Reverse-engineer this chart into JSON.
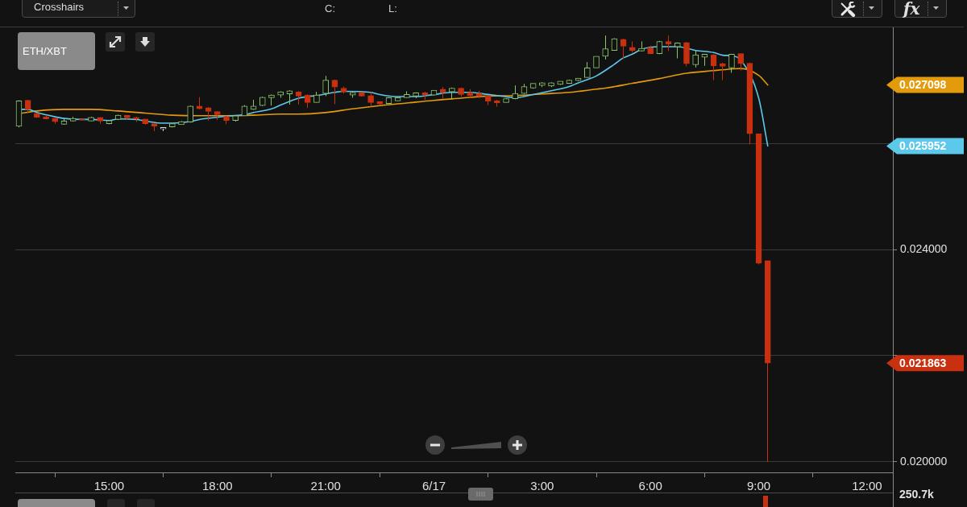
{
  "chart_data": {
    "type": "candlestick",
    "title": "ETH/XBT",
    "annotations": [
      "Crosshairs",
      "C:",
      "L:",
      "fx",
      "250.7k",
      "0.027098",
      "0.025952",
      "0.021863"
    ],
    "x": [
      "--06-16T12:30",
      "--06-16T12:45",
      "--06-16T13:00",
      "--06-16T13:15",
      "--06-16T13:30",
      "--06-16T13:45",
      "--06-16T14:00",
      "--06-16T14:15",
      "--06-16T14:30",
      "--06-16T14:45",
      "--06-16T15:00",
      "--06-16T15:15",
      "--06-16T15:30",
      "--06-16T15:45",
      "--06-16T16:00",
      "--06-16T16:15",
      "--06-16T16:30",
      "--06-16T16:45",
      "--06-16T17:00",
      "--06-16T17:15",
      "--06-16T17:30",
      "--06-16T17:45",
      "--06-16T18:00",
      "--06-16T18:15",
      "--06-16T18:30",
      "--06-16T18:45",
      "--06-16T19:00",
      "--06-16T19:15",
      "--06-16T19:30",
      "--06-16T19:45",
      "--06-16T20:00",
      "--06-16T20:15",
      "--06-16T20:30",
      "--06-16T20:45",
      "--06-16T21:00",
      "--06-16T21:15",
      "--06-16T21:30",
      "--06-16T21:45",
      "--06-16T22:00",
      "--06-16T22:15",
      "--06-16T22:30",
      "--06-16T22:45",
      "--06-16T23:00",
      "--06-16T23:15",
      "--06-16T23:30",
      "--06-16T23:45",
      "--06-17T00:00",
      "--06-17T00:15",
      "--06-17T00:30",
      "--06-17T00:45",
      "--06-17T01:00",
      "--06-17T01:15",
      "--06-17T01:30",
      "--06-17T01:45",
      "--06-17T02:00",
      "--06-17T02:15",
      "--06-17T02:30",
      "--06-17T02:45",
      "--06-17T03:00",
      "--06-17T03:15",
      "--06-17T03:30",
      "--06-17T03:45",
      "--06-17T04:00",
      "--06-17T04:15",
      "--06-17T04:30",
      "--06-17T04:45",
      "--06-17T05:00",
      "--06-17T05:15",
      "--06-17T05:30",
      "--06-17T05:45",
      "--06-17T06:00",
      "--06-17T06:15",
      "--06-17T06:30",
      "--06-17T06:45",
      "--06-17T07:00",
      "--06-17T07:15",
      "--06-17T07:30",
      "--06-17T07:45",
      "--06-17T08:00",
      "--06-17T08:15",
      "--06-17T08:30",
      "--06-17T08:45",
      "--06-17T09:00",
      "--06-17T09:15"
    ],
    "ohlc": [
      [
        0.02632,
        0.02681,
        0.0263,
        0.0268
      ],
      [
        0.02681,
        0.02682,
        0.02658,
        0.02664
      ],
      [
        0.02656,
        0.02657,
        0.02648,
        0.02649
      ],
      [
        0.0265,
        0.02653,
        0.02645,
        0.02646
      ],
      [
        0.02647,
        0.02648,
        0.02637,
        0.02641
      ],
      [
        0.02636,
        0.02646,
        0.02635,
        0.02642
      ],
      [
        0.02642,
        0.0265,
        0.02641,
        0.02647
      ],
      [
        0.02646,
        0.02647,
        0.02643,
        0.02644
      ],
      [
        0.02642,
        0.0265,
        0.02642,
        0.02649
      ],
      [
        0.02649,
        0.02649,
        0.02637,
        0.02642
      ],
      [
        0.02637,
        0.02643,
        0.02636,
        0.02643
      ],
      [
        0.02645,
        0.02654,
        0.02644,
        0.02653
      ],
      [
        0.02653,
        0.02653,
        0.02644,
        0.02648
      ],
      [
        0.02649,
        0.0265,
        0.0264,
        0.02646
      ],
      [
        0.02646,
        0.02646,
        0.02635,
        0.02637
      ],
      [
        0.02637,
        0.02637,
        0.02623,
        0.02632
      ],
      [
        0.02627,
        0.0263,
        0.02623,
        0.0263
      ],
      [
        0.02631,
        0.02637,
        0.0263,
        0.02637
      ],
      [
        0.02635,
        0.02642,
        0.02635,
        0.02641
      ],
      [
        0.0264,
        0.02671,
        0.02639,
        0.0267
      ],
      [
        0.0267,
        0.02687,
        0.02664,
        0.02665
      ],
      [
        0.02667,
        0.02668,
        0.02643,
        0.0266
      ],
      [
        0.0266,
        0.0266,
        0.02644,
        0.02654
      ],
      [
        0.02651,
        0.02652,
        0.02636,
        0.02643
      ],
      [
        0.02643,
        0.02652,
        0.02641,
        0.02652
      ],
      [
        0.02652,
        0.02672,
        0.02652,
        0.0267
      ],
      [
        0.02664,
        0.02682,
        0.02663,
        0.0267
      ],
      [
        0.02671,
        0.02688,
        0.0267,
        0.02687
      ],
      [
        0.02686,
        0.02692,
        0.02671,
        0.02691
      ],
      [
        0.02691,
        0.02698,
        0.02686,
        0.02697
      ],
      [
        0.02693,
        0.027,
        0.02673,
        0.02699
      ],
      [
        0.02697,
        0.02698,
        0.02673,
        0.02689
      ],
      [
        0.02691,
        0.02692,
        0.02667,
        0.02677
      ],
      [
        0.02677,
        0.02697,
        0.02677,
        0.02691
      ],
      [
        0.02694,
        0.02727,
        0.02689,
        0.02719
      ],
      [
        0.02719,
        0.0272,
        0.02674,
        0.02706
      ],
      [
        0.02704,
        0.02707,
        0.02694,
        0.02697
      ],
      [
        0.02691,
        0.02697,
        0.02686,
        0.02696
      ],
      [
        0.02696,
        0.02696,
        0.02688,
        0.02689
      ],
      [
        0.0269,
        0.02696,
        0.02669,
        0.02677
      ],
      [
        0.02679,
        0.02679,
        0.02672,
        0.02674
      ],
      [
        0.02675,
        0.02687,
        0.02675,
        0.02686
      ],
      [
        0.0268,
        0.02687,
        0.0268,
        0.02686
      ],
      [
        0.02686,
        0.02698,
        0.02686,
        0.02692
      ],
      [
        0.02689,
        0.02696,
        0.02685,
        0.02695
      ],
      [
        0.02695,
        0.02697,
        0.02682,
        0.02691
      ],
      [
        0.02691,
        0.027,
        0.0269,
        0.027
      ],
      [
        0.02702,
        0.02706,
        0.02684,
        0.02696
      ],
      [
        0.02697,
        0.02705,
        0.02683,
        0.02704
      ],
      [
        0.02704,
        0.02705,
        0.02688,
        0.02692
      ],
      [
        0.02696,
        0.02702,
        0.02686,
        0.0269
      ],
      [
        0.02694,
        0.02699,
        0.02685,
        0.02689
      ],
      [
        0.02689,
        0.0269,
        0.02672,
        0.02679
      ],
      [
        0.0268,
        0.02682,
        0.02669,
        0.02676
      ],
      [
        0.02677,
        0.02685,
        0.02677,
        0.02684
      ],
      [
        0.02684,
        0.02709,
        0.02683,
        0.02694
      ],
      [
        0.02694,
        0.02712,
        0.02693,
        0.02707
      ],
      [
        0.02704,
        0.02713,
        0.02703,
        0.02713
      ],
      [
        0.02709,
        0.02715,
        0.02706,
        0.02714
      ],
      [
        0.02708,
        0.02715,
        0.02706,
        0.02714
      ],
      [
        0.02711,
        0.02717,
        0.0271,
        0.02717
      ],
      [
        0.02713,
        0.0272,
        0.02712,
        0.02719
      ],
      [
        0.02718,
        0.02723,
        0.02717,
        0.02723
      ],
      [
        0.02724,
        0.02753,
        0.02724,
        0.02742
      ],
      [
        0.02742,
        0.02764,
        0.02742,
        0.02764
      ],
      [
        0.02764,
        0.02803,
        0.02758,
        0.02778
      ],
      [
        0.02775,
        0.02798,
        0.02775,
        0.02797
      ],
      [
        0.02796,
        0.02797,
        0.02759,
        0.02783
      ],
      [
        0.02781,
        0.02792,
        0.02771,
        0.02775
      ],
      [
        0.02774,
        0.02792,
        0.02773,
        0.02779
      ],
      [
        0.0278,
        0.02784,
        0.02768,
        0.02769
      ],
      [
        0.02769,
        0.02793,
        0.02768,
        0.02792
      ],
      [
        0.02792,
        0.02803,
        0.02774,
        0.02787
      ],
      [
        0.02782,
        0.0279,
        0.0276,
        0.02789
      ],
      [
        0.0279,
        0.02791,
        0.02745,
        0.0275
      ],
      [
        0.02748,
        0.02775,
        0.02743,
        0.02767
      ],
      [
        0.02762,
        0.02768,
        0.02746,
        0.02768
      ],
      [
        0.02767,
        0.02768,
        0.02719,
        0.02746
      ],
      [
        0.0275,
        0.02752,
        0.02719,
        0.02745
      ],
      [
        0.02742,
        0.02768,
        0.02733,
        0.02768
      ],
      [
        0.02769,
        0.02769,
        0.02737,
        0.0275
      ],
      [
        0.02751,
        0.02752,
        0.02598,
        0.02618
      ],
      [
        0.02618,
        0.02618,
        0.02372,
        0.02374
      ],
      [
        0.02379,
        0.02379,
        0.02,
        0.02186
      ]
    ],
    "colors": [
      "#8bc66a",
      "#c8300f",
      "#c8300f",
      "#c8300f",
      "#c8300f",
      "#8bc66a",
      "#8bc66a",
      "#c8300f",
      "#8bc66a",
      "#c8300f",
      "#8bc66a",
      "#8bc66a",
      "#c8300f",
      "#c8300f",
      "#c8300f",
      "#c8300f",
      "#d9d9d9",
      "#8bc66a",
      "#8bc66a",
      "#8bc66a",
      "#c8300f",
      "#c8300f",
      "#c8300f",
      "#c8300f",
      "#8bc66a",
      "#8bc66a",
      "#8bc66a",
      "#8bc66a",
      "#8bc66a",
      "#8bc66a",
      "#8bc66a",
      "#c8300f",
      "#c8300f",
      "#8bc66a",
      "#8bc66a",
      "#c8300f",
      "#c8300f",
      "#8bc66a",
      "#c8300f",
      "#c8300f",
      "#c8300f",
      "#8bc66a",
      "#8bc66a",
      "#8bc66a",
      "#8bc66a",
      "#c8300f",
      "#8bc66a",
      "#c8300f",
      "#8bc66a",
      "#c8300f",
      "#c8300f",
      "#c8300f",
      "#c8300f",
      "#c8300f",
      "#8bc66a",
      "#8bc66a",
      "#8bc66a",
      "#8bc66a",
      "#8bc66a",
      "#8bc66a",
      "#8bc66a",
      "#8bc66a",
      "#8bc66a",
      "#8bc66a",
      "#8bc66a",
      "#8bc66a",
      "#8bc66a",
      "#c8300f",
      "#c8300f",
      "#8bc66a",
      "#c8300f",
      "#8bc66a",
      "#c8300f",
      "#8bc66a",
      "#c8300f",
      "#8bc66a",
      "#8bc66a",
      "#c8300f",
      "#c8300f",
      "#8bc66a",
      "#c8300f",
      "#c8300f",
      "#c8300f",
      "#c8300f"
    ],
    "series": [
      {
        "type": "line",
        "color": "#5cc8ea",
        "x": [
          "--06-16T12:30",
          "--06-16T12:45",
          "--06-16T13:00",
          "--06-16T13:30",
          "--06-16T13:45",
          "--06-16T14:15",
          "--06-16T14:30",
          "--06-16T15:00",
          "--06-16T15:15",
          "--06-16T15:45",
          "--06-16T16:00",
          "--06-16T16:30",
          "--06-16T16:45",
          "--06-16T17:15",
          "--06-16T17:30",
          "--06-16T18:00",
          "--06-16T18:15",
          "--06-16T18:45",
          "--06-16T19:00",
          "--06-16T19:30",
          "--06-16T19:45",
          "--06-16T20:15",
          "--06-16T20:30",
          "--06-16T20:45",
          "--06-16T21:15",
          "--06-16T21:30",
          "--06-16T22:15",
          "--06-16T22:30",
          "--06-16T23:00",
          "--06-16T23:30",
          "--06-17T00:00",
          "--06-17T00:30",
          "--06-17T01:00",
          "--06-17T01:30",
          "--06-17T01:45",
          "--06-17T02:15",
          "--06-17T02:45",
          "--06-17T03:15",
          "--06-17T03:45",
          "--06-17T04:00",
          "--06-17T04:15",
          "--06-17T04:30",
          "--06-17T05:00",
          "--06-17T05:15",
          "--06-17T05:30",
          "--06-17T05:45",
          "--06-17T06:15",
          "--06-17T06:45",
          "--06-17T07:15",
          "--06-17T07:45",
          "--06-17T08:00",
          "--06-17T08:15",
          "--06-17T08:30",
          "--06-17T09:00",
          "--06-17T09:15"
        ],
        "values": [
          0.02664,
          0.02664,
          0.02658,
          0.0265,
          0.02647,
          0.02645,
          0.02645,
          0.02643,
          0.02646,
          0.02645,
          0.02642,
          0.02638,
          0.02638,
          0.02641,
          0.02645,
          0.02649,
          0.02651,
          0.02654,
          0.02658,
          0.02665,
          0.02672,
          0.02685,
          0.02688,
          0.0269,
          0.02696,
          0.02698,
          0.02696,
          0.02692,
          0.02688,
          0.02688,
          0.02692,
          0.02696,
          0.02696,
          0.02692,
          0.0269,
          0.02686,
          0.02692,
          0.02699,
          0.02707,
          0.02714,
          0.0272,
          0.02727,
          0.02749,
          0.02761,
          0.02768,
          0.02777,
          0.02782,
          0.02782,
          0.02775,
          0.02771,
          0.02766,
          0.02765,
          0.02757,
          0.02685,
          0.02595
        ]
      },
      {
        "type": "line",
        "color": "#e39b0b",
        "x": [
          "--06-16T12:30",
          "--06-16T13:00",
          "--06-16T13:45",
          "--06-16T14:30",
          "--06-16T15:15",
          "--06-16T16:00",
          "--06-16T16:45",
          "--06-16T17:30",
          "--06-16T18:15",
          "--06-16T19:00",
          "--06-16T19:45",
          "--06-16T20:15",
          "--06-16T21:00",
          "--06-16T21:45",
          "--06-16T22:30",
          "--06-16T23:15",
          "--06-17T00:00",
          "--06-17T00:45",
          "--06-17T01:30",
          "--06-17T02:15",
          "--06-17T03:00",
          "--06-17T03:45",
          "--06-17T04:30",
          "--06-17T04:45",
          "--06-17T05:30",
          "--06-17T06:15",
          "--06-17T07:00",
          "--06-17T07:45",
          "--06-17T08:15",
          "--06-17T08:30",
          "--06-17T09:00",
          "--06-17T09:15"
        ],
        "values": [
          0.02656,
          0.02661,
          0.02664,
          0.02664,
          0.02661,
          0.02657,
          0.02653,
          0.02652,
          0.02652,
          0.02653,
          0.02655,
          0.02655,
          0.02658,
          0.02665,
          0.02671,
          0.02676,
          0.02681,
          0.02685,
          0.02689,
          0.0269,
          0.02693,
          0.02696,
          0.02702,
          0.02704,
          0.02713,
          0.02722,
          0.02732,
          0.02737,
          0.0274,
          0.02741,
          0.02728,
          0.0271
        ]
      }
    ],
    "xlim": [
      "--06-16T12:24",
      "--06-17T12:43"
    ],
    "ylim": [
      0.0198,
      0.0282
    ],
    "xticks": [
      {
        "value": "--06-16T15:00",
        "label": "15:00"
      },
      {
        "value": "--06-16T18:00",
        "label": "18:00"
      },
      {
        "value": "--06-16T21:00",
        "label": "21:00"
      },
      {
        "value": "--06-17T00:00",
        "label": "6/17"
      },
      {
        "value": "--06-17T03:00",
        "label": "3:00"
      },
      {
        "value": "--06-17T06:00",
        "label": "6:00"
      },
      {
        "value": "--06-17T09:00",
        "label": "9:00"
      },
      {
        "value": "--06-17T12:00",
        "label": "12:00"
      }
    ],
    "yticks": [
      {
        "value": 0.02,
        "label": "0.020000"
      },
      {
        "value": 0.022,
        "label": null
      },
      {
        "value": 0.024,
        "label": "0.024000"
      },
      {
        "value": 0.026,
        "label": null
      }
    ],
    "grid": "y"
  }
}
